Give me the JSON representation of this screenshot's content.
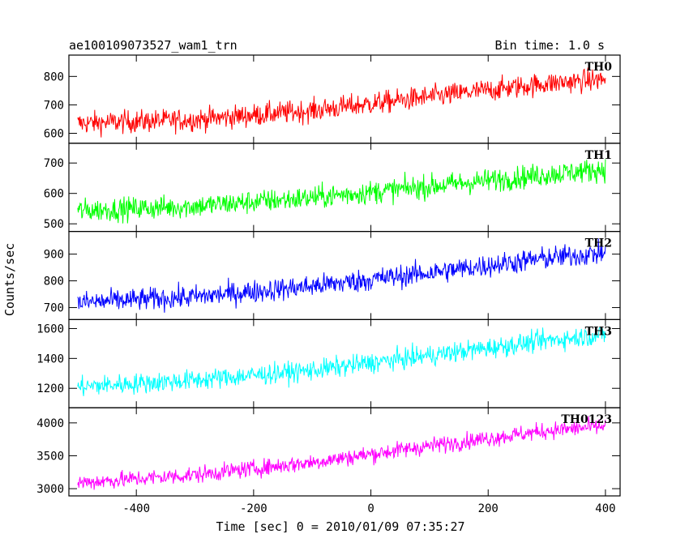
{
  "chart_data": {
    "type": "line",
    "title": "ae100109073527_wam1_trn",
    "annotation": "Bin time: 1.0 s",
    "xlabel": "Time [sec] 0 = 2010/01/09 07:35:27",
    "ylabel": "Counts/sec",
    "xlim": [
      -515,
      425
    ],
    "xticks": [
      -400,
      -200,
      0,
      200,
      400
    ],
    "x_range": [
      -500,
      400
    ],
    "bin": 1.0,
    "grid": false,
    "panels": [
      {
        "name": "TH0",
        "color": "#ff0000",
        "ylim": [
          565,
          875
        ],
        "yticks": [
          600,
          700,
          800
        ],
        "trend": {
          "x": [
            -500,
            -300,
            -100,
            100,
            300,
            400
          ],
          "y": [
            635,
            648,
            680,
            728,
            775,
            790
          ]
        },
        "noise": 28
      },
      {
        "name": "TH1",
        "color": "#00ff00",
        "ylim": [
          475,
          765
        ],
        "yticks": [
          500,
          600,
          700
        ],
        "trend": {
          "x": [
            -500,
            -300,
            -100,
            100,
            300,
            400
          ],
          "y": [
            543,
            558,
            586,
            623,
            662,
            680
          ]
        },
        "noise": 27
      },
      {
        "name": "TH2",
        "color": "#0000ff",
        "ylim": [
          655,
          985
        ],
        "yticks": [
          700,
          800,
          900
        ],
        "trend": {
          "x": [
            -500,
            -300,
            -100,
            100,
            300,
            400
          ],
          "y": [
            718,
            740,
            780,
            830,
            885,
            905
          ]
        },
        "noise": 30
      },
      {
        "name": "TH3",
        "color": "#00ffff",
        "ylim": [
          1070,
          1660
        ],
        "yticks": [
          1200,
          1400,
          1600
        ],
        "trend": {
          "x": [
            -500,
            -300,
            -100,
            100,
            300,
            400
          ],
          "y": [
            1210,
            1255,
            1320,
            1420,
            1520,
            1560
          ]
        },
        "noise": 48
      },
      {
        "name": "TH0123",
        "color": "#ff00ff",
        "ylim": [
          2890,
          4230
        ],
        "yticks": [
          3000,
          3500,
          4000
        ],
        "trend": {
          "x": [
            -500,
            -300,
            -100,
            100,
            300,
            400
          ],
          "y": [
            3090,
            3210,
            3400,
            3650,
            3880,
            3950
          ]
        },
        "noise": 90
      }
    ]
  }
}
